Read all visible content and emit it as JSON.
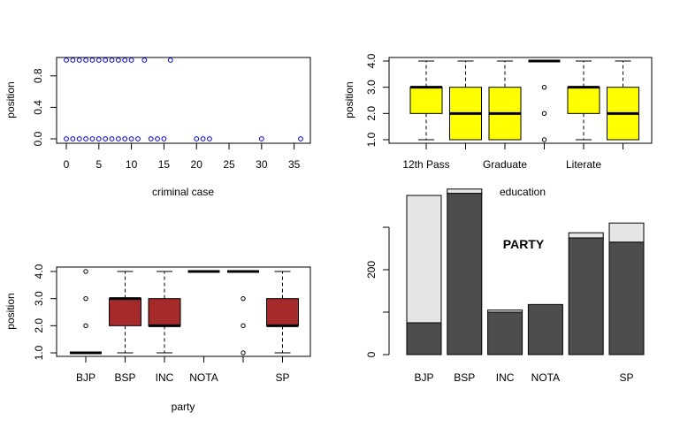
{
  "chart_data": [
    {
      "type": "scatter",
      "xlabel": "criminal case",
      "ylabel": "position",
      "xticks": [
        "0",
        "5",
        "10",
        "15",
        "20",
        "25",
        "30",
        "35"
      ],
      "yticks": [
        "0.0",
        "0.4",
        "0.8"
      ],
      "xlim": [
        0,
        36
      ],
      "ylim": [
        0,
        1
      ],
      "point_color": "#0000cc",
      "points": [
        [
          0,
          1
        ],
        [
          1,
          1
        ],
        [
          2,
          1
        ],
        [
          3,
          1
        ],
        [
          4,
          1
        ],
        [
          5,
          1
        ],
        [
          6,
          1
        ],
        [
          7,
          1
        ],
        [
          8,
          1
        ],
        [
          9,
          1
        ],
        [
          10,
          1
        ],
        [
          12,
          1
        ],
        [
          16,
          1
        ],
        [
          0,
          0
        ],
        [
          1,
          0
        ],
        [
          2,
          0
        ],
        [
          3,
          0
        ],
        [
          4,
          0
        ],
        [
          5,
          0
        ],
        [
          6,
          0
        ],
        [
          7,
          0
        ],
        [
          8,
          0
        ],
        [
          9,
          0
        ],
        [
          10,
          0
        ],
        [
          11,
          0
        ],
        [
          13,
          0
        ],
        [
          14,
          0
        ],
        [
          15,
          0
        ],
        [
          20,
          0
        ],
        [
          21,
          0
        ],
        [
          22,
          0
        ],
        [
          30,
          0
        ],
        [
          36,
          0
        ]
      ]
    },
    {
      "type": "box",
      "xlabel": "education",
      "ylabel": "position",
      "yticks": [
        "1.0",
        "2.0",
        "3.0",
        "4.0"
      ],
      "ylim": [
        1,
        4
      ],
      "box_color": "#ffff00",
      "tick_labels": [
        "12th Pass",
        "",
        "Graduate",
        "",
        "Literate",
        ""
      ],
      "boxes": [
        {
          "min": 1,
          "q1": 2,
          "median": 3,
          "q3": 3,
          "max": 4,
          "outliers": []
        },
        {
          "min": 1,
          "q1": 1,
          "median": 2,
          "q3": 3,
          "max": 4,
          "outliers": []
        },
        {
          "min": 1,
          "q1": 1,
          "median": 2,
          "q3": 3,
          "max": 4,
          "outliers": []
        },
        {
          "min": 4,
          "q1": 4,
          "median": 4,
          "q3": 4,
          "max": 4,
          "outliers": [
            1,
            2,
            3
          ]
        },
        {
          "min": 1,
          "q1": 2,
          "median": 3,
          "q3": 3,
          "max": 4,
          "outliers": []
        },
        {
          "min": 1,
          "q1": 1,
          "median": 2,
          "q3": 3,
          "max": 4,
          "outliers": []
        }
      ]
    },
    {
      "type": "box",
      "xlabel": "party",
      "ylabel": "position",
      "yticks": [
        "1.0",
        "2.0",
        "3.0",
        "4.0"
      ],
      "ylim": [
        1,
        4
      ],
      "box_color": "#a52a2a",
      "tick_labels": [
        "BJP",
        "BSP",
        "INC",
        "NOTA",
        "",
        "SP"
      ],
      "boxes": [
        {
          "min": 1,
          "q1": 1,
          "median": 1,
          "q3": 1,
          "max": 1,
          "outliers": [
            2,
            3,
            4
          ]
        },
        {
          "min": 1,
          "q1": 2,
          "median": 3,
          "q3": 3,
          "max": 4,
          "outliers": []
        },
        {
          "min": 1,
          "q1": 2,
          "median": 2,
          "q3": 3,
          "max": 4,
          "outliers": []
        },
        {
          "min": 4,
          "q1": 4,
          "median": 4,
          "q3": 4,
          "max": 4,
          "outliers": []
        },
        {
          "min": 4,
          "q1": 4,
          "median": 4,
          "q3": 4,
          "max": 4,
          "outliers": [
            1,
            2,
            3
          ]
        },
        {
          "min": 1,
          "q1": 2,
          "median": 2,
          "q3": 3,
          "max": 4,
          "outliers": []
        }
      ]
    },
    {
      "type": "bar",
      "stacked": true,
      "title": "PARTY",
      "yticks": [
        "0",
        "200"
      ],
      "ylim": [
        0,
        390
      ],
      "tick_labels": [
        "BJP",
        "BSP",
        "INC",
        "NOTA",
        "",
        "SP"
      ],
      "series": [
        {
          "color": "#4d4d4d",
          "values": [
            75,
            380,
            100,
            118,
            275,
            265
          ]
        },
        {
          "color": "#e6e6e6",
          "values": [
            300,
            10,
            5,
            0,
            12,
            45
          ]
        }
      ]
    }
  ]
}
